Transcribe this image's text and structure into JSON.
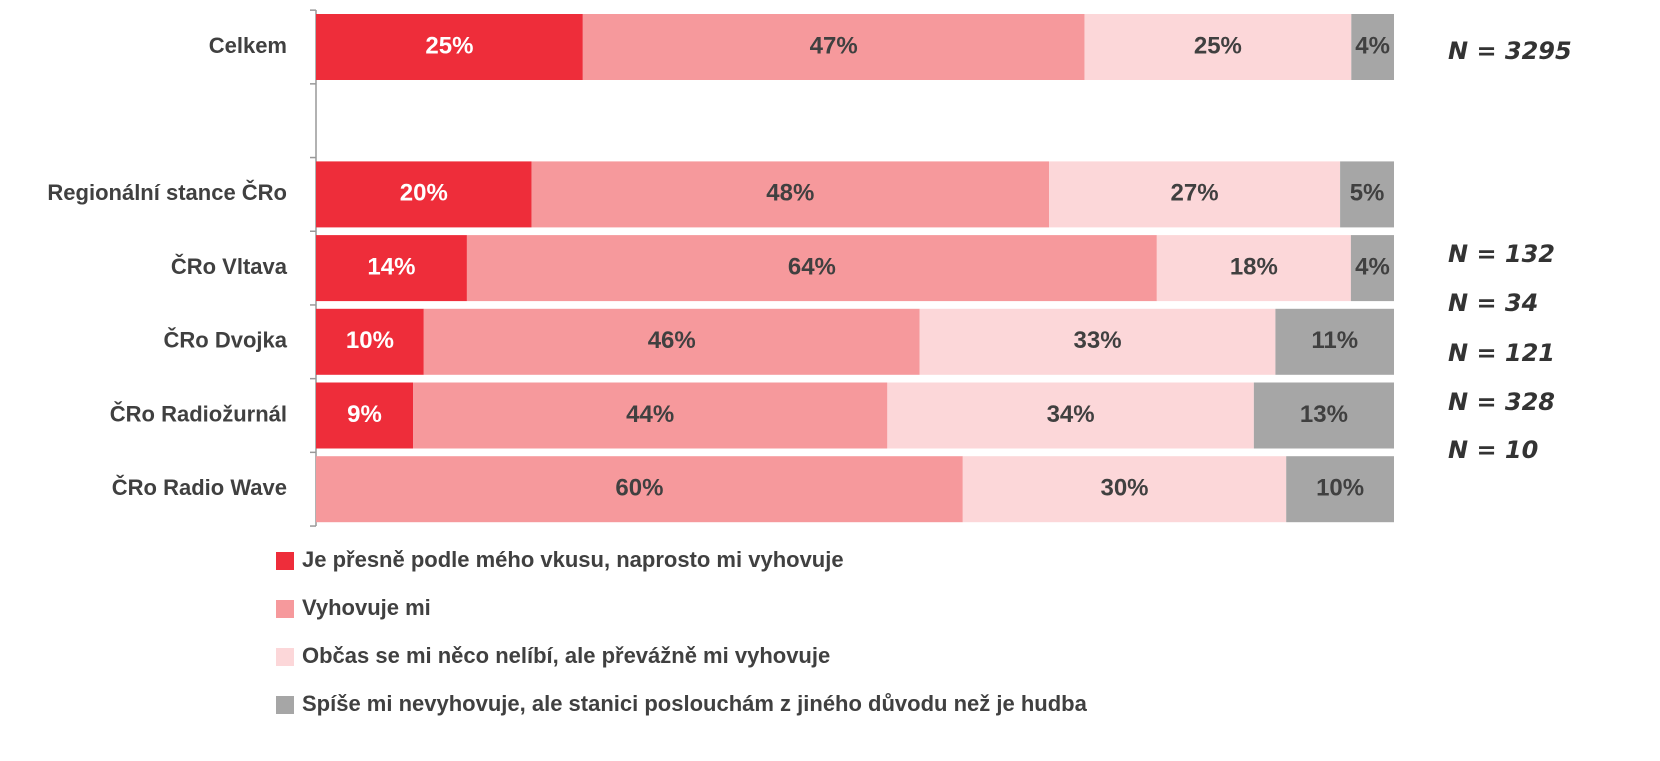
{
  "chart_data": {
    "type": "bar",
    "orientation": "horizontal",
    "stacked": "percent",
    "categories": [
      "Celkem",
      null,
      "Regionální stance ČRo",
      "ČRo Vltava",
      "ČRo Dvojka",
      "ČRo Radiožurnál",
      "ČRo Radio Wave"
    ],
    "series": [
      {
        "name": "Je přesně podle mého vkusu, naprosto mi vyhovuje",
        "color": "#ee2d3a",
        "label_color": "#ffffff",
        "values": [
          25,
          null,
          20,
          14,
          10,
          9,
          null
        ],
        "value_labels": [
          "25%",
          null,
          "20%",
          "14%",
          "10%",
          "9%",
          null
        ]
      },
      {
        "name": "Vyhovuje mi",
        "color": "#f6999c",
        "label_color": "#404040",
        "values": [
          47,
          null,
          48,
          64,
          46,
          44,
          60
        ],
        "value_labels": [
          "47%",
          null,
          "48%",
          "64%",
          "46%",
          "44%",
          "60%"
        ]
      },
      {
        "name": "Občas se mi něco nelíbí, ale převážně mi vyhovuje",
        "color": "#fcd7d9",
        "label_color": "#404040",
        "values": [
          25,
          null,
          27,
          18,
          33,
          34,
          30
        ],
        "value_labels": [
          "25%",
          null,
          "27%",
          "18%",
          "33%",
          "34%",
          "30%"
        ]
      },
      {
        "name": "Spíše mi nevyhovuje, ale stanici poslouchám z jiného důvodu než je hudba",
        "color": "#a6a6a6",
        "label_color": "#404040",
        "values": [
          4,
          null,
          5,
          4,
          11,
          13,
          10
        ],
        "value_labels": [
          "4%",
          null,
          "5%",
          "4%",
          "11%",
          "13%",
          "10%"
        ]
      }
    ],
    "annotations": [
      "N = 3295",
      "N = 132",
      "N = 34",
      "N = 121",
      "N = 328",
      "N = 10"
    ]
  }
}
